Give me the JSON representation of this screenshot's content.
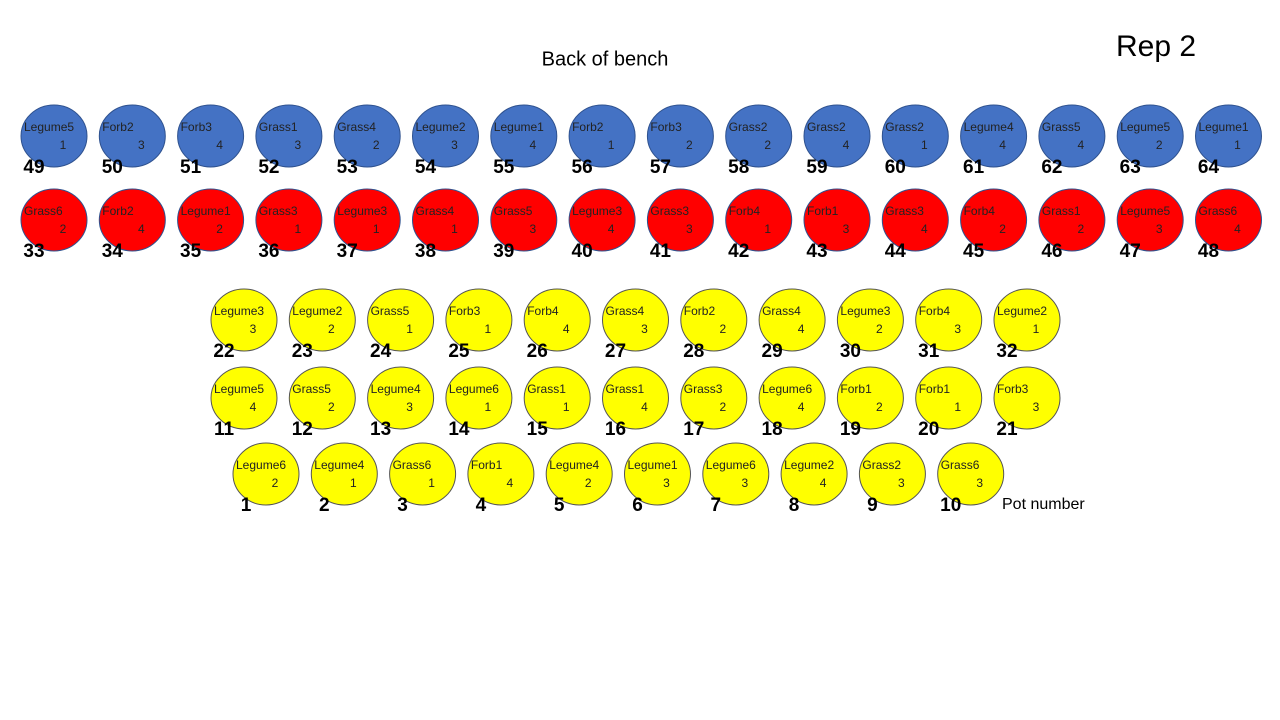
{
  "header": {
    "title": "Rep 2",
    "subtitle": "Back of bench",
    "legend": "Pot number"
  },
  "rows": [
    {
      "color": "#4472c4",
      "pots": [
        {
          "species": "Legume5",
          "rep": 1,
          "number": 49
        },
        {
          "species": "Forb2",
          "rep": 3,
          "number": 50
        },
        {
          "species": "Forb3",
          "rep": 4,
          "number": 51
        },
        {
          "species": "Grass1",
          "rep": 3,
          "number": 52
        },
        {
          "species": "Grass4",
          "rep": 2,
          "number": 53
        },
        {
          "species": "Legume2",
          "rep": 3,
          "number": 54
        },
        {
          "species": "Legume1",
          "rep": 4,
          "number": 55
        },
        {
          "species": "Forb2",
          "rep": 1,
          "number": 56
        },
        {
          "species": "Forb3",
          "rep": 2,
          "number": 57
        },
        {
          "species": "Grass2",
          "rep": 2,
          "number": 58
        },
        {
          "species": "Grass2",
          "rep": 4,
          "number": 59
        },
        {
          "species": "Grass2",
          "rep": 1,
          "number": 60
        },
        {
          "species": "Legume4",
          "rep": 4,
          "number": 61
        },
        {
          "species": "Grass5",
          "rep": 4,
          "number": 62
        },
        {
          "species": "Legume5",
          "rep": 2,
          "number": 63
        },
        {
          "species": "Legume1",
          "rep": 1,
          "number": 64
        }
      ]
    },
    {
      "color": "#ff0000",
      "pots": [
        {
          "species": "Grass6",
          "rep": 2,
          "number": 33
        },
        {
          "species": "Forb2",
          "rep": 4,
          "number": 34
        },
        {
          "species": "Legume1",
          "rep": 2,
          "number": 35
        },
        {
          "species": "Grass3",
          "rep": 1,
          "number": 36
        },
        {
          "species": "Legume3",
          "rep": 1,
          "number": 37
        },
        {
          "species": "Grass4",
          "rep": 1,
          "number": 38
        },
        {
          "species": "Grass5",
          "rep": 3,
          "number": 39
        },
        {
          "species": "Legume3",
          "rep": 4,
          "number": 40
        },
        {
          "species": "Grass3",
          "rep": 3,
          "number": 41
        },
        {
          "species": "Forb4",
          "rep": 1,
          "number": 42
        },
        {
          "species": "Forb1",
          "rep": 3,
          "number": 43
        },
        {
          "species": "Grass3",
          "rep": 4,
          "number": 44
        },
        {
          "species": "Forb4",
          "rep": 2,
          "number": 45
        },
        {
          "species": "Grass1",
          "rep": 2,
          "number": 46
        },
        {
          "species": "Legume5",
          "rep": 3,
          "number": 47
        },
        {
          "species": "Grass6",
          "rep": 4,
          "number": 48
        }
      ]
    },
    {
      "color": "#ffff00",
      "pots": [
        {
          "species": "Legume3",
          "rep": 3,
          "number": 22
        },
        {
          "species": "Legume2",
          "rep": 2,
          "number": 23
        },
        {
          "species": "Grass5",
          "rep": 1,
          "number": 24
        },
        {
          "species": "Forb3",
          "rep": 1,
          "number": 25
        },
        {
          "species": "Forb4",
          "rep": 4,
          "number": 26
        },
        {
          "species": "Grass4",
          "rep": 3,
          "number": 27
        },
        {
          "species": "Forb2",
          "rep": 2,
          "number": 28
        },
        {
          "species": "Grass4",
          "rep": 4,
          "number": 29
        },
        {
          "species": "Legume3",
          "rep": 2,
          "number": 30
        },
        {
          "species": "Forb4",
          "rep": 3,
          "number": 31
        },
        {
          "species": "Legume2",
          "rep": 1,
          "number": 32
        }
      ]
    },
    {
      "color": "#ffff00",
      "pots": [
        {
          "species": "Legume5",
          "rep": 4,
          "number": 11
        },
        {
          "species": "Grass5",
          "rep": 2,
          "number": 12
        },
        {
          "species": "Legume4",
          "rep": 3,
          "number": 13
        },
        {
          "species": "Legume6",
          "rep": 1,
          "number": 14
        },
        {
          "species": "Grass1",
          "rep": 1,
          "number": 15
        },
        {
          "species": "Grass1",
          "rep": 4,
          "number": 16
        },
        {
          "species": "Grass3",
          "rep": 2,
          "number": 17
        },
        {
          "species": "Legume6",
          "rep": 4,
          "number": 18
        },
        {
          "species": "Forb1",
          "rep": 2,
          "number": 19
        },
        {
          "species": "Forb1",
          "rep": 1,
          "number": 20
        },
        {
          "species": "Forb3",
          "rep": 3,
          "number": 21
        }
      ]
    },
    {
      "color": "#ffff00",
      "pots": [
        {
          "species": "Legume6",
          "rep": 2,
          "number": 1
        },
        {
          "species": "Legume4",
          "rep": 1,
          "number": 2
        },
        {
          "species": "Grass6",
          "rep": 1,
          "number": 3
        },
        {
          "species": "Forb1",
          "rep": 4,
          "number": 4
        },
        {
          "species": "Legume4",
          "rep": 2,
          "number": 5
        },
        {
          "species": "Legume1",
          "rep": 3,
          "number": 6
        },
        {
          "species": "Legume6",
          "rep": 3,
          "number": 7
        },
        {
          "species": "Legume2",
          "rep": 4,
          "number": 8
        },
        {
          "species": "Grass2",
          "rep": 3,
          "number": 9
        },
        {
          "species": "Grass6",
          "rep": 3,
          "number": 10
        }
      ]
    }
  ]
}
